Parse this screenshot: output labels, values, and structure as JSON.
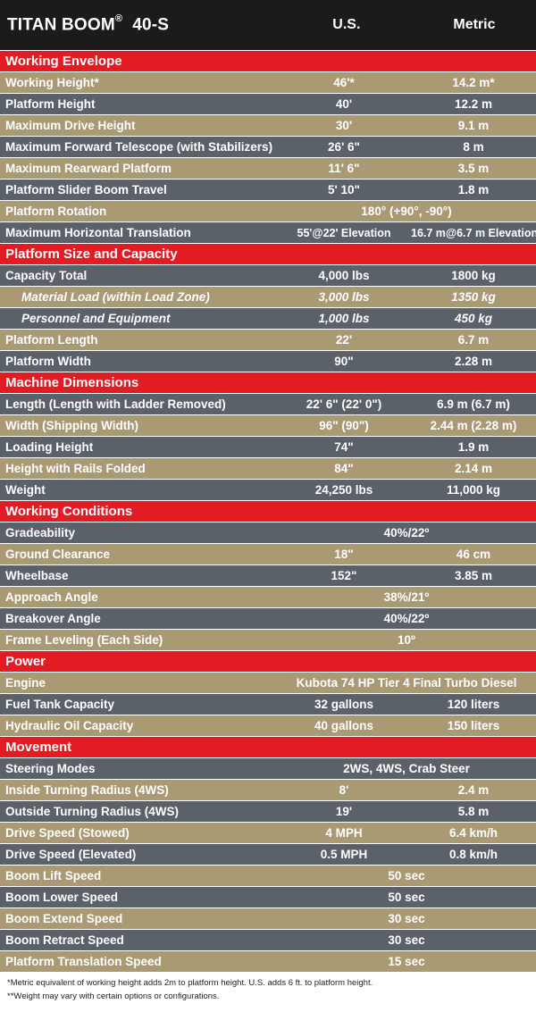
{
  "header": {
    "title": "TITAN BOOM",
    "title_mark": "®",
    "model": "40-S",
    "col_us": "U.S.",
    "col_metric": "Metric"
  },
  "rows": [
    {
      "type": "section",
      "label": "Working Envelope"
    },
    {
      "type": "data",
      "style": "tan",
      "label": "Working Height*",
      "us": "46'*",
      "metric": "14.2 m*"
    },
    {
      "type": "data",
      "style": "slate",
      "label": "Platform Height",
      "us": "40'",
      "metric": "12.2 m"
    },
    {
      "type": "data",
      "style": "tan",
      "label": "Maximum Drive Height",
      "us": "30'",
      "metric": "9.1 m"
    },
    {
      "type": "data",
      "style": "slate",
      "label": "Maximum Forward Telescope (with Stabilizers)",
      "us": "26' 6\"",
      "metric": "8 m"
    },
    {
      "type": "data",
      "style": "tan",
      "label": "Maximum Rearward Platform",
      "us": "11' 6\"",
      "metric": "3.5 m"
    },
    {
      "type": "data",
      "style": "slate",
      "label": "Platform Slider Boom Travel",
      "us": "5' 10\"",
      "metric": "1.8 m"
    },
    {
      "type": "span",
      "style": "tan",
      "label": "Platform Rotation",
      "value": "180° (+90°, -90°)"
    },
    {
      "type": "data",
      "style": "slate",
      "tight": true,
      "label": "Maximum Horizontal Translation",
      "us": "55'@22' Elevation",
      "metric": "16.7 m@6.7 m Elevation"
    },
    {
      "type": "section",
      "label": "Platform Size and Capacity"
    },
    {
      "type": "data",
      "style": "slate",
      "label": "Capacity Total",
      "us": "4,000 lbs",
      "metric": "1800 kg"
    },
    {
      "type": "data",
      "style": "tan",
      "sub": true,
      "label": "Material Load (within Load Zone)",
      "us": "3,000 lbs",
      "metric": "1350 kg"
    },
    {
      "type": "data",
      "style": "slate",
      "sub": true,
      "label": "Personnel and Equipment",
      "us": "1,000 lbs",
      "metric": "450 kg"
    },
    {
      "type": "data",
      "style": "tan",
      "label": "Platform Length",
      "us": "22'",
      "metric": "6.7 m"
    },
    {
      "type": "data",
      "style": "slate",
      "label": "Platform Width",
      "us": "90\"",
      "metric": "2.28 m"
    },
    {
      "type": "section",
      "label": "Machine Dimensions"
    },
    {
      "type": "data",
      "style": "slate",
      "label": "Length (Length with Ladder Removed)",
      "us": "22' 6\" (22' 0\")",
      "metric": "6.9 m (6.7 m)"
    },
    {
      "type": "data",
      "style": "tan",
      "label": "Width (Shipping Width)",
      "us": "96\" (90\")",
      "metric": "2.44 m (2.28 m)"
    },
    {
      "type": "data",
      "style": "slate",
      "label": "Loading Height",
      "us": "74\"",
      "metric": "1.9 m"
    },
    {
      "type": "data",
      "style": "tan",
      "label": "Height with Rails Folded",
      "us": "84\"",
      "metric": "2.14 m"
    },
    {
      "type": "data",
      "style": "slate",
      "label": "Weight",
      "us": "24,250 lbs",
      "metric": "11,000 kg"
    },
    {
      "type": "section",
      "label": "Working Conditions"
    },
    {
      "type": "span",
      "style": "slate",
      "label": "Gradeability",
      "value": "40%/22º"
    },
    {
      "type": "data",
      "style": "tan",
      "label": "Ground Clearance",
      "us": "18\"",
      "metric": "46 cm"
    },
    {
      "type": "data",
      "style": "slate",
      "label": "Wheelbase",
      "us": "152\"",
      "metric": "3.85 m"
    },
    {
      "type": "span",
      "style": "tan",
      "label": "Approach Angle",
      "value": "38%/21º"
    },
    {
      "type": "span",
      "style": "slate",
      "label": "Breakover Angle",
      "value": "40%/22º"
    },
    {
      "type": "span",
      "style": "tan",
      "label": "Frame Leveling (Each Side)",
      "value": "10º"
    },
    {
      "type": "section",
      "label": "Power"
    },
    {
      "type": "span",
      "style": "tan",
      "label": "Engine",
      "value": "Kubota 74 HP Tier 4 Final Turbo Diesel"
    },
    {
      "type": "data",
      "style": "slate",
      "label": "Fuel Tank Capacity",
      "us": "32 gallons",
      "metric": "120 liters"
    },
    {
      "type": "data",
      "style": "tan",
      "label": "Hydraulic Oil Capacity",
      "us": "40 gallons",
      "metric": "150 liters"
    },
    {
      "type": "section",
      "label": "Movement"
    },
    {
      "type": "span",
      "style": "slate",
      "label": "Steering Modes",
      "value": "2WS, 4WS, Crab Steer"
    },
    {
      "type": "data",
      "style": "tan",
      "label": "Inside Turning Radius (4WS)",
      "us": "8'",
      "metric": "2.4 m"
    },
    {
      "type": "data",
      "style": "slate",
      "label": "Outside Turning Radius (4WS)",
      "us": "19'",
      "metric": "5.8 m"
    },
    {
      "type": "data",
      "style": "tan",
      "label": "Drive Speed (Stowed)",
      "us": "4 MPH",
      "metric": "6.4 km/h"
    },
    {
      "type": "data",
      "style": "slate",
      "label": "Drive Speed (Elevated)",
      "us": "0.5 MPH",
      "metric": "0.8 km/h"
    },
    {
      "type": "span",
      "style": "tan",
      "label": "Boom Lift Speed",
      "value": "50 sec"
    },
    {
      "type": "span",
      "style": "slate",
      "label": "Boom Lower Speed",
      "value": "50 sec"
    },
    {
      "type": "span",
      "style": "tan",
      "label": "Boom Extend Speed",
      "value": "30 sec"
    },
    {
      "type": "span",
      "style": "slate",
      "label": "Boom Retract Speed",
      "value": "30 sec"
    },
    {
      "type": "span",
      "style": "tan",
      "label": "Platform Translation Speed",
      "value": "15 sec"
    }
  ],
  "footnotes": [
    "*Metric equivalent of working height adds 2m to platform height. U.S. adds 6 ft. to platform height.",
    "**Weight may vary with certain options or configurations."
  ],
  "colors": {
    "header": "#1b1b1b",
    "section": "#e31b23",
    "tan": "#a99a73",
    "slate": "#5a6169"
  }
}
